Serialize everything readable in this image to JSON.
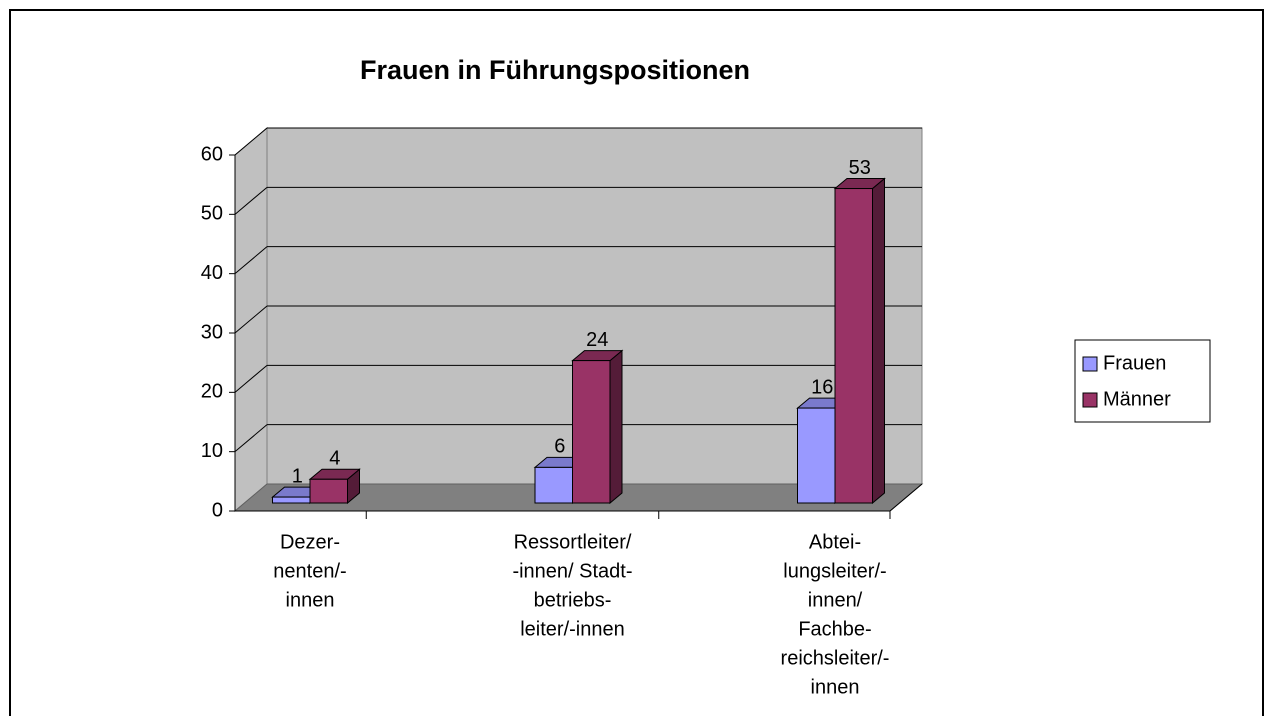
{
  "chart_data": {
    "type": "bar3d",
    "title": "Frauen in Führungspositionen",
    "categories": [
      [
        "Dezer-",
        "nenten/-",
        "innen"
      ],
      [
        "Ressortleiter/",
        "-innen/ Stadt-",
        "betriebs-",
        "leiter/-innen"
      ],
      [
        "Abtei-",
        "lungsleiter/-",
        "innen/",
        "Fachbe-",
        "reichsleiter/-",
        "innen"
      ]
    ],
    "series": [
      {
        "name": "Frauen",
        "color": "#9999ff",
        "values": [
          1,
          6,
          16
        ]
      },
      {
        "name": "Männer",
        "color": "#993366",
        "values": [
          4,
          24,
          53
        ]
      }
    ],
    "ylim": [
      0,
      60
    ],
    "yticks": [
      0,
      10,
      20,
      30,
      40,
      50,
      60
    ],
    "grid": true,
    "legend": "right"
  }
}
